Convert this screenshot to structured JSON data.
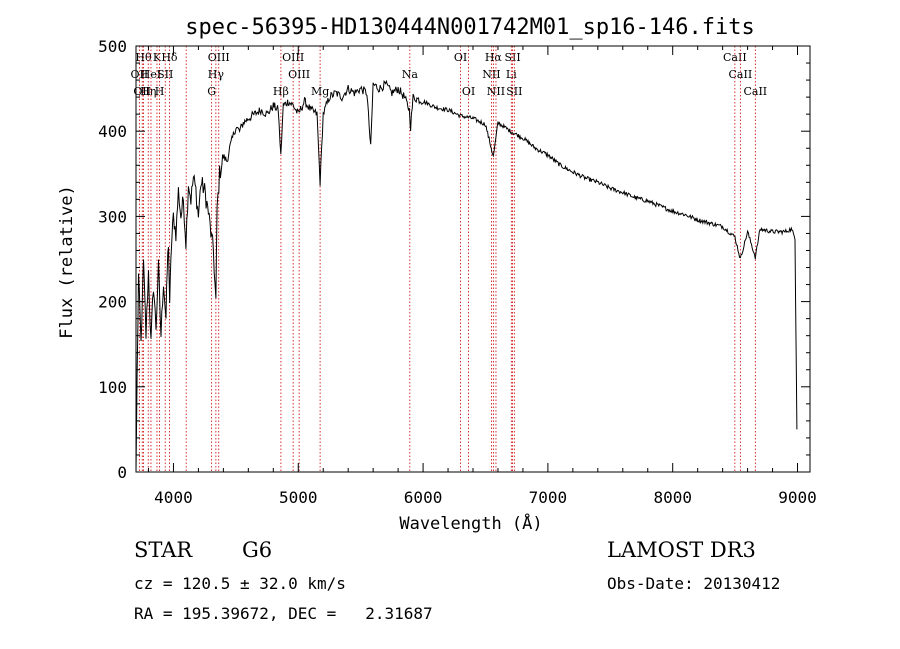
{
  "chart_data": {
    "type": "line",
    "title": "spec-56395-HD130444N001742M01_sp16-146.fits",
    "xlabel": "Wavelength (Å)",
    "ylabel": "Flux (relative)",
    "xlim": [
      3700,
      9100
    ],
    "ylim": [
      0,
      500
    ],
    "xticks": [
      4000,
      5000,
      6000,
      7000,
      8000,
      9000
    ],
    "yticks": [
      0,
      100,
      200,
      300,
      400,
      500
    ],
    "series": [
      {
        "name": "flux",
        "points": [
          [
            3700,
            0
          ],
          [
            3710,
            120
          ],
          [
            3720,
            230
          ],
          [
            3740,
            150
          ],
          [
            3760,
            245
          ],
          [
            3780,
            160
          ],
          [
            3800,
            235
          ],
          [
            3820,
            150
          ],
          [
            3840,
            220
          ],
          [
            3860,
            170
          ],
          [
            3880,
            240
          ],
          [
            3900,
            160
          ],
          [
            3920,
            225
          ],
          [
            3940,
            180
          ],
          [
            3950,
            235
          ],
          [
            3960,
            270
          ],
          [
            3970,
            190
          ],
          [
            3980,
            255
          ],
          [
            4000,
            300
          ],
          [
            4020,
            280
          ],
          [
            4040,
            330
          ],
          [
            4060,
            300
          ],
          [
            4080,
            320
          ],
          [
            4100,
            270
          ],
          [
            4120,
            340
          ],
          [
            4140,
            320
          ],
          [
            4160,
            345
          ],
          [
            4180,
            330
          ],
          [
            4200,
            300
          ],
          [
            4220,
            340
          ],
          [
            4250,
            330
          ],
          [
            4280,
            305
          ],
          [
            4300,
            280
          ],
          [
            4320,
            260
          ],
          [
            4340,
            200
          ],
          [
            4350,
            310
          ],
          [
            4370,
            350
          ],
          [
            4400,
            370
          ],
          [
            4430,
            365
          ],
          [
            4450,
            380
          ],
          [
            4480,
            395
          ],
          [
            4500,
            405
          ],
          [
            4530,
            400
          ],
          [
            4560,
            410
          ],
          [
            4600,
            415
          ],
          [
            4650,
            420
          ],
          [
            4700,
            425
          ],
          [
            4750,
            420
          ],
          [
            4800,
            430
          ],
          [
            4840,
            425
          ],
          [
            4860,
            370
          ],
          [
            4880,
            430
          ],
          [
            4920,
            435
          ],
          [
            4960,
            430
          ],
          [
            5000,
            420
          ],
          [
            5050,
            435
          ],
          [
            5100,
            425
          ],
          [
            5150,
            420
          ],
          [
            5175,
            340
          ],
          [
            5200,
            420
          ],
          [
            5250,
            440
          ],
          [
            5300,
            445
          ],
          [
            5350,
            440
          ],
          [
            5400,
            450
          ],
          [
            5450,
            445
          ],
          [
            5500,
            450
          ],
          [
            5550,
            445
          ],
          [
            5580,
            380
          ],
          [
            5600,
            455
          ],
          [
            5650,
            450
          ],
          [
            5700,
            455
          ],
          [
            5750,
            445
          ],
          [
            5800,
            450
          ],
          [
            5850,
            440
          ],
          [
            5890,
            425
          ],
          [
            5900,
            405
          ],
          [
            5920,
            440
          ],
          [
            6000,
            435
          ],
          [
            6100,
            428
          ],
          [
            6200,
            425
          ],
          [
            6300,
            418
          ],
          [
            6400,
            415
          ],
          [
            6500,
            408
          ],
          [
            6563,
            370
          ],
          [
            6600,
            410
          ],
          [
            6700,
            400
          ],
          [
            6800,
            392
          ],
          [
            6900,
            380
          ],
          [
            7000,
            372
          ],
          [
            7100,
            360
          ],
          [
            7200,
            352
          ],
          [
            7300,
            345
          ],
          [
            7400,
            340
          ],
          [
            7500,
            333
          ],
          [
            7600,
            328
          ],
          [
            7700,
            322
          ],
          [
            7800,
            318
          ],
          [
            7900,
            312
          ],
          [
            8000,
            306
          ],
          [
            8100,
            302
          ],
          [
            8200,
            296
          ],
          [
            8300,
            292
          ],
          [
            8400,
            288
          ],
          [
            8498,
            276
          ],
          [
            8542,
            250
          ],
          [
            8600,
            282
          ],
          [
            8662,
            252
          ],
          [
            8700,
            285
          ],
          [
            8800,
            282
          ],
          [
            8900,
            282
          ],
          [
            8950,
            285
          ],
          [
            8980,
            275
          ],
          [
            8995,
            50
          ]
        ]
      }
    ],
    "lines": [
      {
        "wl": 3727,
        "label": "OII",
        "row": 2
      },
      {
        "wl": 3750,
        "label": "OII",
        "row": 3
      },
      {
        "wl": 3760,
        "label": "Hθ",
        "row": 1
      },
      {
        "wl": 3798,
        "label": "Hη",
        "row": 3
      },
      {
        "wl": 3820,
        "label": "HeI",
        "row": 2
      },
      {
        "wl": 3868,
        "label": "K",
        "row": 1
      },
      {
        "wl": 3889,
        "label": "H",
        "row": 3
      },
      {
        "wl": 3934,
        "label": "SII",
        "row": 2
      },
      {
        "wl": 3968,
        "label": "Hδ",
        "row": 1
      },
      {
        "wl": 4102,
        "label": "",
        "row": 0
      },
      {
        "wl": 4306,
        "label": "G",
        "row": 3
      },
      {
        "wl": 4340,
        "label": "Hγ",
        "row": 2
      },
      {
        "wl": 4363,
        "label": "OIII",
        "row": 1
      },
      {
        "wl": 4861,
        "label": "Hβ",
        "row": 3
      },
      {
        "wl": 4959,
        "label": "OIII",
        "row": 1
      },
      {
        "wl": 5007,
        "label": "OIII",
        "row": 2
      },
      {
        "wl": 5175,
        "label": "Mg",
        "row": 3
      },
      {
        "wl": 5894,
        "label": "Na",
        "row": 2
      },
      {
        "wl": 6300,
        "label": "OI",
        "row": 1
      },
      {
        "wl": 6364,
        "label": "OI",
        "row": 3
      },
      {
        "wl": 6548,
        "label": "NII",
        "row": 2
      },
      {
        "wl": 6563,
        "label": "Hα",
        "row": 1
      },
      {
        "wl": 6584,
        "label": "NII",
        "row": 3
      },
      {
        "wl": 6707,
        "label": "Li",
        "row": 2
      },
      {
        "wl": 6717,
        "label": "SII",
        "row": 1
      },
      {
        "wl": 6731,
        "label": "SII",
        "row": 3
      },
      {
        "wl": 8498,
        "label": "CaII",
        "row": 1
      },
      {
        "wl": 8542,
        "label": "CaII",
        "row": 2
      },
      {
        "wl": 8662,
        "label": "CaII",
        "row": 3
      }
    ]
  },
  "info": {
    "spec_type": "STAR",
    "subclass": "G6",
    "survey": "LAMOST DR3",
    "cz": "cz = 120.5 ± 32.0 km/s",
    "obs_date": "Obs-Date: 20130412",
    "radec": "RA = 195.39672, DEC =   2.31687"
  },
  "colors": {
    "spectrum": "#000000",
    "line_marker": "#cc0000",
    "axis": "#000000"
  }
}
